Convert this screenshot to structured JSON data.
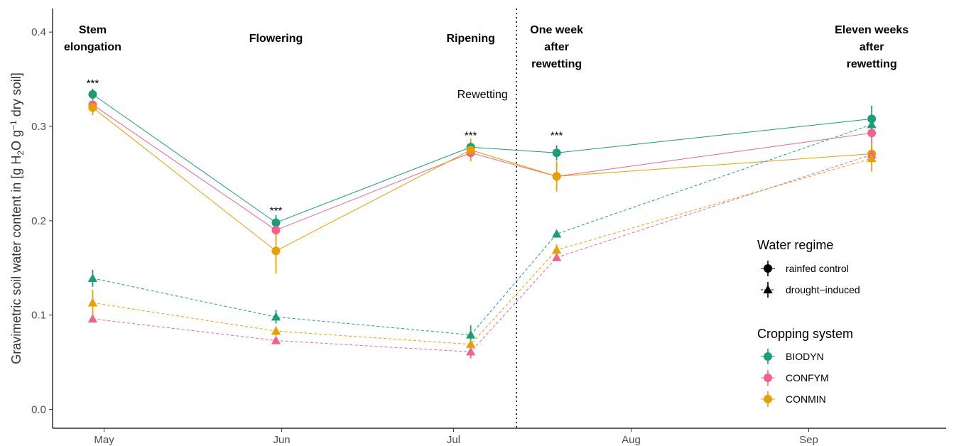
{
  "chart_data": {
    "type": "line",
    "ylabel": "Gravimetric soil water content in [g H2O g−1 dry soil]",
    "ylabel_parts": {
      "p1": "Gravimetric soil water content in [g H",
      "sub": "2",
      "p2": "O g",
      "sup": "−1",
      "p3": "dry soil]"
    },
    "xlabel": "",
    "ylim": [
      -0.02,
      0.425
    ],
    "xlim": [
      "2021-04-22",
      "2021-09-25"
    ],
    "y_ticks": [
      0.0,
      0.1,
      0.2,
      0.3,
      0.4
    ],
    "y_tick_labels": [
      "0.0",
      "0.1",
      "0.2",
      "0.3",
      "0.4"
    ],
    "x_ticks": [
      "2021-05-01",
      "2021-06-01",
      "2021-07-01",
      "2021-08-01",
      "2021-09-01"
    ],
    "x_tick_labels": [
      "May",
      "Jun",
      "Jul",
      "Aug",
      "Sep"
    ],
    "grid": false,
    "sampling_dates": [
      "2021-04-29",
      "2021-05-31",
      "2021-07-04",
      "2021-07-19",
      "2021-09-12"
    ],
    "phase_labels": [
      {
        "date": "2021-04-29",
        "lines": [
          "Stem",
          "elongation"
        ]
      },
      {
        "date": "2021-05-31",
        "lines": [
          "Flowering"
        ]
      },
      {
        "date": "2021-07-04",
        "lines": [
          "Ripening"
        ]
      },
      {
        "date": "2021-07-19",
        "lines": [
          "One week",
          "after",
          "rewetting"
        ]
      },
      {
        "date": "2021-09-12",
        "lines": [
          "Eleven weeks",
          "after",
          "rewetting"
        ]
      }
    ],
    "rewetting": {
      "date": "2021-07-12",
      "label": "Rewetting"
    },
    "significance": [
      {
        "date": "2021-04-29",
        "y": 0.345,
        "label": "***"
      },
      {
        "date": "2021-05-31",
        "y": 0.21,
        "label": "***"
      },
      {
        "date": "2021-07-04",
        "y": 0.29,
        "label": "***"
      },
      {
        "date": "2021-07-19",
        "y": 0.29,
        "label": "***"
      }
    ],
    "series": [
      {
        "name": "BIODYN",
        "regime": "rainfed control",
        "color": "#1b9e77",
        "values": [
          0.334,
          0.198,
          0.278,
          0.272,
          0.308
        ],
        "err": [
          0.006,
          0.008,
          0.006,
          0.008,
          0.014
        ]
      },
      {
        "name": "CONFYM",
        "regime": "rainfed control",
        "color": "#f0648c",
        "values": [
          0.323,
          0.19,
          0.272,
          0.247,
          0.293
        ],
        "err": [
          0.005,
          0.006,
          0.005,
          0.006,
          0.013
        ]
      },
      {
        "name": "CONMIN",
        "regime": "rainfed control",
        "color": "#e6a000",
        "values": [
          0.32,
          0.168,
          0.275,
          0.247,
          0.271
        ],
        "err": [
          0.008,
          0.024,
          0.012,
          0.016,
          0.01
        ]
      },
      {
        "name": "BIODYN",
        "regime": "drought-induced",
        "color": "#1b9e77",
        "values": [
          0.139,
          0.098,
          0.079,
          0.186,
          0.302
        ],
        "err": [
          0.009,
          0.007,
          0.01,
          0.004,
          0.01
        ]
      },
      {
        "name": "CONFYM",
        "regime": "drought-induced",
        "color": "#f0648c",
        "values": [
          0.096,
          0.073,
          0.061,
          0.161,
          0.27
        ],
        "err": [
          0.004,
          0.004,
          0.007,
          0.004,
          0.008
        ]
      },
      {
        "name": "CONMIN",
        "regime": "drought-induced",
        "color": "#e6a000",
        "values": [
          0.113,
          0.083,
          0.069,
          0.169,
          0.266
        ],
        "err": [
          0.014,
          0.005,
          0.005,
          0.006,
          0.014
        ]
      }
    ],
    "legend": {
      "position": "right",
      "water_regime": {
        "title": "Water regime",
        "items": [
          {
            "label": "rainfed control",
            "shape": "circle",
            "line": "solid"
          },
          {
            "label": "drought−induced",
            "shape": "triangle",
            "line": "dashed"
          }
        ]
      },
      "cropping_system": {
        "title": "Cropping system",
        "items": [
          {
            "label": "BIODYN",
            "color": "#1b9e77"
          },
          {
            "label": "CONFYM",
            "color": "#f0648c"
          },
          {
            "label": "CONMIN",
            "color": "#e6a000"
          }
        ]
      }
    }
  }
}
